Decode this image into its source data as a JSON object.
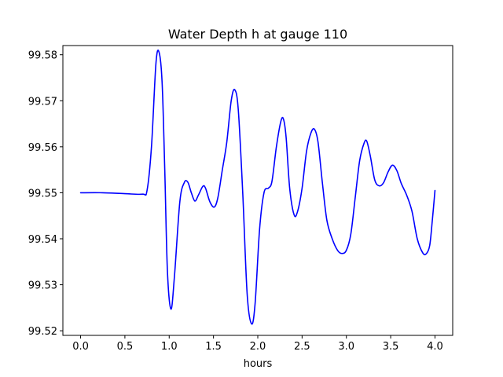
{
  "chart_data": {
    "type": "line",
    "title": "Water Depth h at gauge 110",
    "xlabel": "hours",
    "ylabel": "",
    "xlim": [
      -0.2,
      4.2
    ],
    "ylim": [
      99.519,
      99.582
    ],
    "xticks": [
      0.0,
      0.5,
      1.0,
      1.5,
      2.0,
      2.5,
      3.0,
      3.5,
      4.0
    ],
    "xtick_labels": [
      "0.0",
      "0.5",
      "1.0",
      "1.5",
      "2.0",
      "2.5",
      "3.0",
      "3.5",
      "4.0"
    ],
    "yticks": [
      99.52,
      99.53,
      99.54,
      99.55,
      99.56,
      99.57,
      99.58
    ],
    "ytick_labels": [
      "99.52",
      "99.53",
      "99.54",
      "99.55",
      "99.56",
      "99.57",
      "99.58"
    ],
    "grid": false,
    "series": [
      {
        "color": "#0000ff",
        "points": [
          [
            0.0,
            99.55
          ],
          [
            0.25,
            99.55
          ],
          [
            0.5,
            99.5498
          ],
          [
            0.7,
            99.5497
          ],
          [
            0.75,
            99.5505
          ],
          [
            0.8,
            99.56
          ],
          [
            0.85,
            99.578
          ],
          [
            0.885,
            99.5806
          ],
          [
            0.92,
            99.574
          ],
          [
            0.95,
            99.555
          ],
          [
            0.98,
            99.533
          ],
          [
            1.02,
            99.5247
          ],
          [
            1.06,
            99.532
          ],
          [
            1.12,
            99.548
          ],
          [
            1.17,
            99.5522
          ],
          [
            1.21,
            99.5523
          ],
          [
            1.25,
            99.55
          ],
          [
            1.29,
            99.5482
          ],
          [
            1.33,
            99.5495
          ],
          [
            1.38,
            99.5514
          ],
          [
            1.41,
            99.551
          ],
          [
            1.46,
            99.548
          ],
          [
            1.51,
            99.5469
          ],
          [
            1.55,
            99.549
          ],
          [
            1.6,
            99.555
          ],
          [
            1.65,
            99.561
          ],
          [
            1.7,
            99.57
          ],
          [
            1.74,
            99.5724
          ],
          [
            1.78,
            99.568
          ],
          [
            1.83,
            99.55
          ],
          [
            1.88,
            99.528
          ],
          [
            1.93,
            99.5215
          ],
          [
            1.97,
            99.526
          ],
          [
            2.02,
            99.542
          ],
          [
            2.07,
            99.55
          ],
          [
            2.12,
            99.551
          ],
          [
            2.16,
            99.5525
          ],
          [
            2.21,
            99.56
          ],
          [
            2.26,
            99.5655
          ],
          [
            2.29,
            99.566
          ],
          [
            2.32,
            99.562
          ],
          [
            2.36,
            99.551
          ],
          [
            2.41,
            99.5452
          ],
          [
            2.45,
            99.546
          ],
          [
            2.5,
            99.551
          ],
          [
            2.55,
            99.559
          ],
          [
            2.6,
            99.563
          ],
          [
            2.64,
            99.5638
          ],
          [
            2.68,
            99.561
          ],
          [
            2.73,
            99.552
          ],
          [
            2.78,
            99.544
          ],
          [
            2.84,
            99.54
          ],
          [
            2.9,
            99.5375
          ],
          [
            2.95,
            99.5368
          ],
          [
            3.0,
            99.5375
          ],
          [
            3.05,
            99.541
          ],
          [
            3.1,
            99.549
          ],
          [
            3.15,
            99.557
          ],
          [
            3.2,
            99.5608
          ],
          [
            3.23,
            99.5612
          ],
          [
            3.27,
            99.558
          ],
          [
            3.32,
            99.5528
          ],
          [
            3.37,
            99.5515
          ],
          [
            3.42,
            99.5522
          ],
          [
            3.47,
            99.5545
          ],
          [
            3.52,
            99.556
          ],
          [
            3.57,
            99.5548
          ],
          [
            3.62,
            99.552
          ],
          [
            3.68,
            99.5495
          ],
          [
            3.74,
            99.546
          ],
          [
            3.8,
            99.54
          ],
          [
            3.86,
            99.537
          ],
          [
            3.9,
            99.5367
          ],
          [
            3.94,
            99.5385
          ],
          [
            3.97,
            99.544
          ],
          [
            4.0,
            99.5505
          ]
        ]
      }
    ]
  }
}
